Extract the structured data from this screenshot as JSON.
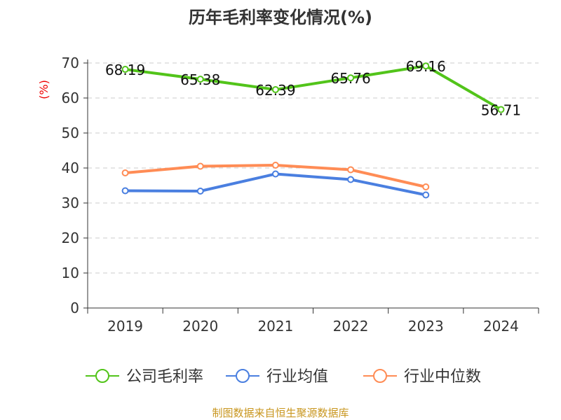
{
  "chart_data": {
    "type": "line",
    "title": "历年毛利率变化情况(%)",
    "ylabel": "(%)",
    "xlabel": "",
    "categories": [
      "2019",
      "2020",
      "2021",
      "2022",
      "2023",
      "2024"
    ],
    "ylim": [
      0,
      70
    ],
    "yticks": [
      "0",
      "10",
      "20",
      "30",
      "40",
      "50",
      "60",
      "70"
    ],
    "grid": true,
    "legend_position": "bottom",
    "series": [
      {
        "name": "公司毛利率",
        "color": "#52c41a",
        "values": [
          68.19,
          65.38,
          62.39,
          65.76,
          69.16,
          56.71
        ],
        "labels": [
          "68.19",
          "65.38",
          "62.39",
          "65.76",
          "69.16",
          "56.71"
        ]
      },
      {
        "name": "行业均值",
        "color": "#4a7fe0",
        "values": [
          33.5,
          33.4,
          38.3,
          36.7,
          32.3,
          null
        ]
      },
      {
        "name": "行业中位数",
        "color": "#ff8c55",
        "values": [
          38.6,
          40.5,
          40.8,
          39.5,
          34.6,
          null
        ]
      }
    ],
    "source": "制图数据来自恒生聚源数据库"
  }
}
